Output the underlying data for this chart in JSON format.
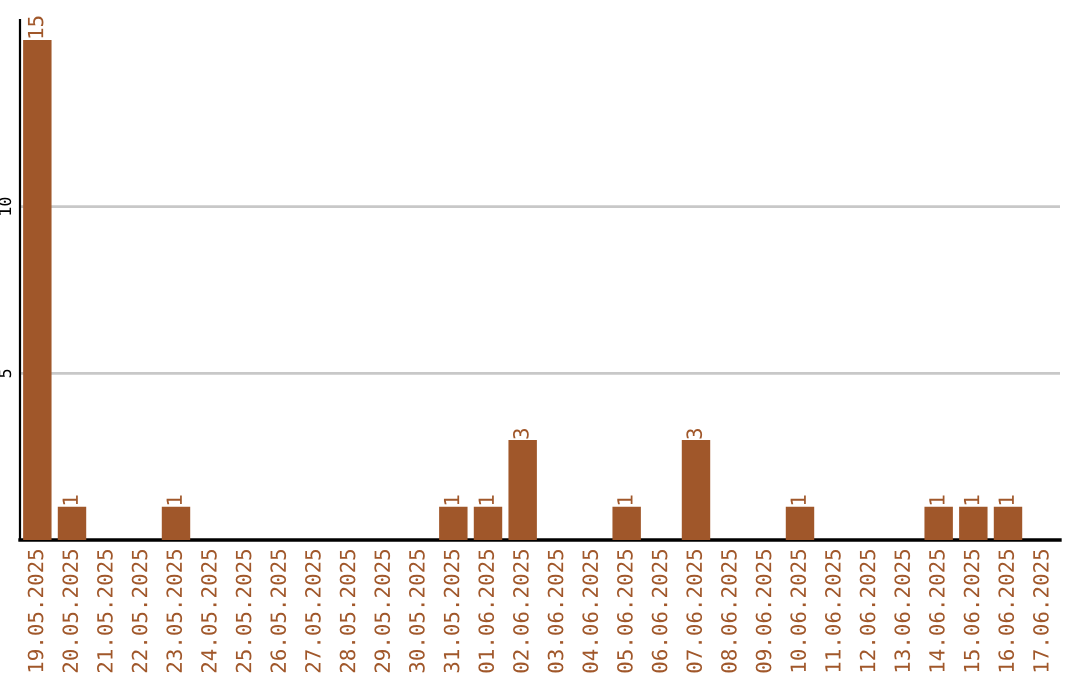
{
  "chart_data": {
    "type": "bar",
    "categories": [
      "19.05.2025",
      "20.05.2025",
      "21.05.2025",
      "22.05.2025",
      "23.05.2025",
      "24.05.2025",
      "25.05.2025",
      "26.05.2025",
      "27.05.2025",
      "28.05.2025",
      "29.05.2025",
      "30.05.2025",
      "31.05.2025",
      "01.06.2025",
      "02.06.2025",
      "03.06.2025",
      "04.06.2025",
      "05.06.2025",
      "06.06.2025",
      "07.06.2025",
      "08.06.2025",
      "09.06.2025",
      "10.06.2025",
      "11.06.2025",
      "12.06.2025",
      "13.06.2025",
      "14.06.2025",
      "15.06.2025",
      "16.06.2025",
      "17.06.2025"
    ],
    "values": [
      15,
      1,
      0,
      0,
      1,
      0,
      0,
      0,
      0,
      0,
      0,
      0,
      1,
      1,
      3,
      0,
      0,
      1,
      0,
      3,
      0,
      0,
      1,
      0,
      0,
      0,
      1,
      1,
      1,
      0
    ],
    "value_labels": [
      "15",
      "1",
      null,
      null,
      "1",
      null,
      null,
      null,
      null,
      null,
      null,
      null,
      "1",
      "1",
      "3",
      null,
      null,
      "1",
      null,
      "3",
      null,
      null,
      "1",
      null,
      null,
      null,
      "1",
      "1",
      "1",
      null
    ],
    "color": "#a0572a",
    "ylim": [
      0,
      15.6
    ],
    "yticks": [
      5,
      10
    ],
    "grid": "y"
  }
}
